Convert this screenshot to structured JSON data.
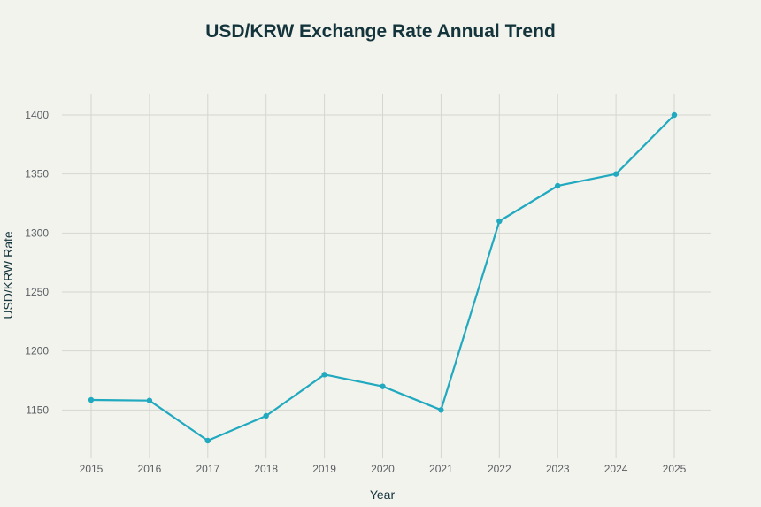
{
  "chart_data": {
    "type": "line",
    "title": "USD/KRW Exchange Rate Annual Trend",
    "xlabel": "Year",
    "ylabel": "USD/KRW Rate",
    "x": [
      "2015",
      "2016",
      "2017",
      "2018",
      "2019",
      "2020",
      "2021",
      "2022",
      "2023",
      "2024",
      "2025"
    ],
    "series": [
      {
        "name": "USD/KRW Rate",
        "color": "#21a9bf",
        "values": [
          1158.5,
          1158.0,
          1124.0,
          1145.0,
          1180.0,
          1170.0,
          1150.0,
          1310.0,
          1340.0,
          1350.0,
          1400.0
        ]
      }
    ],
    "yticks": [
      1150,
      1200,
      1250,
      1300,
      1350,
      1400
    ],
    "ylim": [
      1109,
      1418
    ],
    "grid": true
  }
}
